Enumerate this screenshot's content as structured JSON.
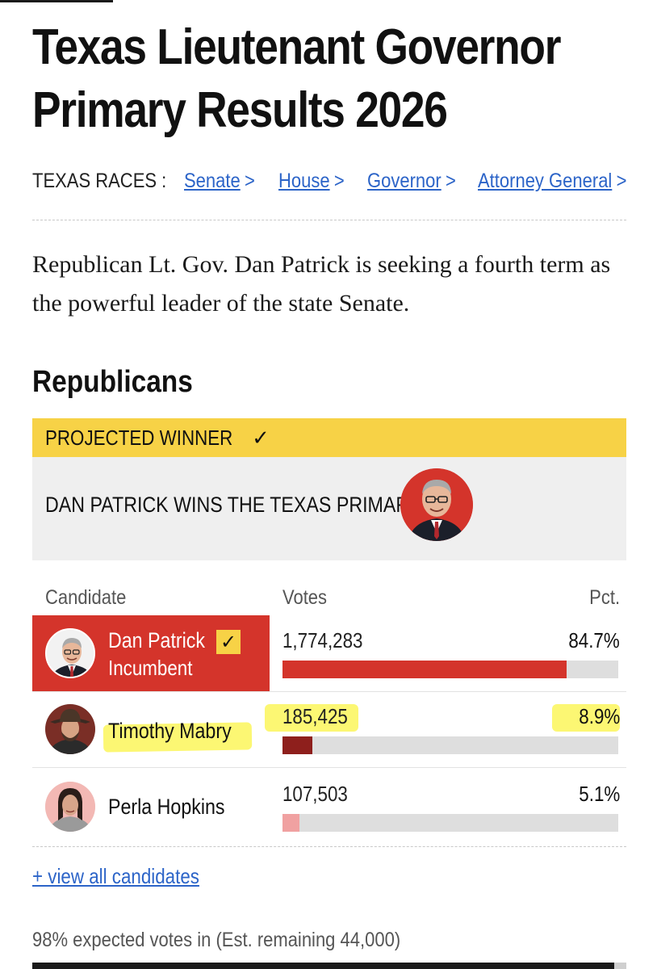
{
  "page": {
    "title_line1": "Texas Lieutenant Governor",
    "title_line2": "Primary Results 2026"
  },
  "races": {
    "label": "TEXAS RACES :",
    "links": [
      {
        "label": "Senate",
        "chevron": ">"
      },
      {
        "label": "House",
        "chevron": ">"
      },
      {
        "label": "Governor",
        "chevron": ">"
      },
      {
        "label": "Attorney General",
        "chevron": ">"
      }
    ]
  },
  "intro": "Republican Lt. Gov. Dan Patrick is seeking a fourth term as the powerful leader of the state Senate.",
  "section": {
    "title": "Republicans"
  },
  "winner": {
    "banner_label": "PROJECTED WINNER",
    "banner_icon": "checkmark-icon",
    "headline": "DAN PATRICK WINS THE TEXAS PRIMARY"
  },
  "table": {
    "headers": {
      "candidate": "Candidate",
      "votes": "Votes",
      "pct": "Pct."
    },
    "rows": [
      {
        "name": "Dan Patrick",
        "note": "Incumbent",
        "votes": "1,774,283",
        "pct": "84.7%",
        "share": 0.847,
        "bar_color": "#d4342b",
        "winner": true
      },
      {
        "name": "Timothy Mabry",
        "note": "",
        "votes": "185,425",
        "pct": "8.9%",
        "share": 0.089,
        "bar_color": "#8e1f1c",
        "winner": false
      },
      {
        "name": "Perla Hopkins",
        "note": "",
        "votes": "107,503",
        "pct": "5.1%",
        "share": 0.051,
        "bar_color": "#f0a1a1",
        "winner": false
      }
    ]
  },
  "view_all": "+ view all candidates",
  "expected": {
    "text": "98% expected votes in (Est. remaining 44,000)",
    "share": 0.98
  },
  "colors": {
    "accent_red": "#d4342b",
    "winner_yellow": "#f7d246",
    "link_blue": "#2c64c8",
    "highlighter": "#fbf65a"
  }
}
